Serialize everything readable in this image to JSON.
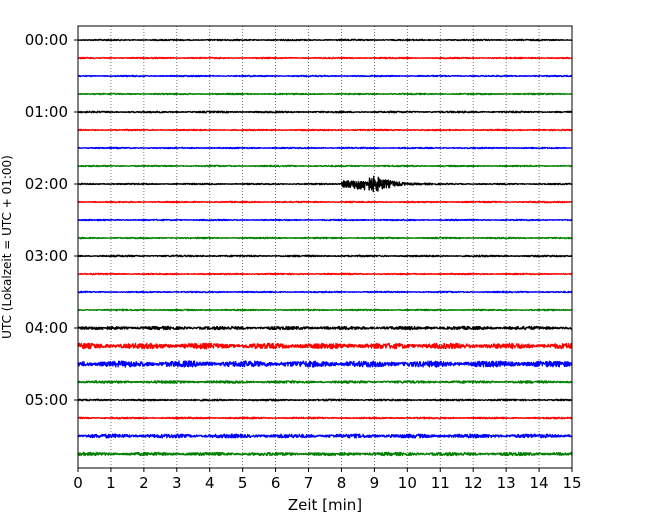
{
  "chart_data": {
    "type": "line",
    "title": "",
    "xlabel": "Zeit  [min]",
    "ylabel": "UTC (Lokalzeit = UTC + 01:00)",
    "xlim": [
      0,
      15
    ],
    "x_ticks": [
      0,
      1,
      2,
      3,
      4,
      5,
      6,
      7,
      8,
      9,
      10,
      11,
      12,
      13,
      14,
      15
    ],
    "y_ticks": [
      "00:00",
      "01:00",
      "02:00",
      "03:00",
      "04:00",
      "05:00"
    ],
    "row_interval_min": 15,
    "grid": true,
    "trace_colors": [
      "#000000",
      "#ff0000",
      "#0000ff",
      "#008000"
    ],
    "traces": [
      {
        "start_time": "00:00",
        "color": "#000000",
        "noise": 0.5
      },
      {
        "start_time": "00:15",
        "color": "#ff0000",
        "noise": 0.5
      },
      {
        "start_time": "00:30",
        "color": "#0000ff",
        "noise": 0.5
      },
      {
        "start_time": "00:45",
        "color": "#008000",
        "noise": 0.5
      },
      {
        "start_time": "01:00",
        "color": "#000000",
        "noise": 0.6
      },
      {
        "start_time": "01:15",
        "color": "#ff0000",
        "noise": 0.5
      },
      {
        "start_time": "01:30",
        "color": "#0000ff",
        "noise": 0.5
      },
      {
        "start_time": "01:45",
        "color": "#008000",
        "noise": 0.5
      },
      {
        "start_time": "02:00",
        "color": "#000000",
        "noise": 0.5,
        "event": {
          "start_min": 8.0,
          "peak_min": 9.05,
          "end_min": 10.8,
          "amplitude": 7.5
        }
      },
      {
        "start_time": "02:15",
        "color": "#ff0000",
        "noise": 0.5
      },
      {
        "start_time": "02:30",
        "color": "#0000ff",
        "noise": 0.5
      },
      {
        "start_time": "02:45",
        "color": "#008000",
        "noise": 0.5
      },
      {
        "start_time": "03:00",
        "color": "#000000",
        "noise": 0.6
      },
      {
        "start_time": "03:15",
        "color": "#ff0000",
        "noise": 0.5
      },
      {
        "start_time": "03:30",
        "color": "#0000ff",
        "noise": 0.5
      },
      {
        "start_time": "03:45",
        "color": "#008000",
        "noise": 0.5
      },
      {
        "start_time": "04:00",
        "color": "#000000",
        "noise": 1.2
      },
      {
        "start_time": "04:15",
        "color": "#ff0000",
        "noise": 2.0
      },
      {
        "start_time": "04:30",
        "color": "#0000ff",
        "noise": 2.2
      },
      {
        "start_time": "04:45",
        "color": "#008000",
        "noise": 0.9
      },
      {
        "start_time": "05:00",
        "color": "#000000",
        "noise": 0.6
      },
      {
        "start_time": "05:15",
        "color": "#ff0000",
        "noise": 0.6
      },
      {
        "start_time": "05:30",
        "color": "#0000ff",
        "noise": 1.4
      },
      {
        "start_time": "05:45",
        "color": "#008000",
        "noise": 1.2
      }
    ]
  }
}
